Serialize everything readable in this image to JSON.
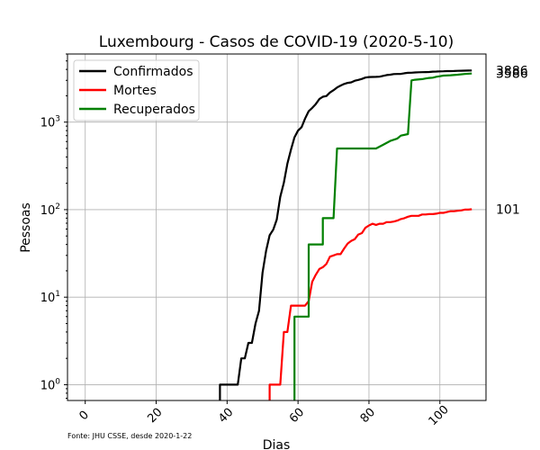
{
  "chart_data": {
    "type": "line",
    "title": "Luxembourg - Casos de COVID-19 (2020-5-10)",
    "xlabel": "Dias",
    "ylabel": "Pessoas",
    "source": "Fonte: JHU CSSE, desde 2020-1-22",
    "xlim": [
      -5,
      113
    ],
    "ylim": [
      0.66,
      6000
    ],
    "yscale": "log",
    "xticks": [
      0,
      20,
      40,
      60,
      80,
      100
    ],
    "yticks": [
      {
        "value": 1,
        "base": "10",
        "exp": "0"
      },
      {
        "value": 10,
        "base": "10",
        "exp": "1"
      },
      {
        "value": 100,
        "base": "10",
        "exp": "2"
      },
      {
        "value": 1000,
        "base": "10",
        "exp": "3"
      }
    ],
    "grid": true,
    "legend_position": "top-left",
    "series": [
      {
        "name": "Confirmados",
        "color": "#000000",
        "end_label": "3886",
        "points": [
          [
            38,
            0.5
          ],
          [
            38,
            1
          ],
          [
            43,
            1
          ],
          [
            44,
            2
          ],
          [
            45,
            2
          ],
          [
            46,
            3
          ],
          [
            47,
            3
          ],
          [
            48,
            5
          ],
          [
            49,
            7
          ],
          [
            50,
            19
          ],
          [
            51,
            34
          ],
          [
            52,
            51
          ],
          [
            53,
            59
          ],
          [
            54,
            77
          ],
          [
            55,
            140
          ],
          [
            56,
            203
          ],
          [
            57,
            335
          ],
          [
            58,
            484
          ],
          [
            59,
            670
          ],
          [
            60,
            798
          ],
          [
            61,
            875
          ],
          [
            62,
            1099
          ],
          [
            63,
            1333
          ],
          [
            64,
            1453
          ],
          [
            65,
            1605
          ],
          [
            66,
            1831
          ],
          [
            67,
            1950
          ],
          [
            68,
            1988
          ],
          [
            69,
            2178
          ],
          [
            70,
            2319
          ],
          [
            71,
            2487
          ],
          [
            72,
            2612
          ],
          [
            73,
            2729
          ],
          [
            74,
            2804
          ],
          [
            75,
            2843
          ],
          [
            76,
            2970
          ],
          [
            77,
            3034
          ],
          [
            78,
            3115
          ],
          [
            79,
            3223
          ],
          [
            80,
            3270
          ],
          [
            81,
            3281
          ],
          [
            82,
            3292
          ],
          [
            83,
            3307
          ],
          [
            84,
            3373
          ],
          [
            85,
            3444
          ],
          [
            86,
            3480
          ],
          [
            87,
            3537
          ],
          [
            88,
            3550
          ],
          [
            89,
            3558
          ],
          [
            90,
            3618
          ],
          [
            91,
            3654
          ],
          [
            92,
            3665
          ],
          [
            93,
            3695
          ],
          [
            94,
            3711
          ],
          [
            95,
            3723
          ],
          [
            96,
            3729
          ],
          [
            97,
            3741
          ],
          [
            98,
            3769
          ],
          [
            99,
            3784
          ],
          [
            100,
            3802
          ],
          [
            101,
            3812
          ],
          [
            102,
            3824
          ],
          [
            103,
            3828
          ],
          [
            104,
            3840
          ],
          [
            105,
            3851
          ],
          [
            106,
            3859
          ],
          [
            107,
            3871
          ],
          [
            108,
            3877
          ],
          [
            109,
            3886
          ]
        ]
      },
      {
        "name": "Mortes",
        "color": "#ff0000",
        "end_label": "101",
        "points": [
          [
            52,
            0.5
          ],
          [
            52,
            1
          ],
          [
            55,
            1
          ],
          [
            56,
            4
          ],
          [
            57,
            4
          ],
          [
            58,
            8
          ],
          [
            62,
            8
          ],
          [
            63,
            9
          ],
          [
            64,
            15
          ],
          [
            65,
            18
          ],
          [
            66,
            21
          ],
          [
            67,
            22
          ],
          [
            68,
            24
          ],
          [
            69,
            29
          ],
          [
            70,
            30
          ],
          [
            71,
            31
          ],
          [
            72,
            31
          ],
          [
            73,
            36
          ],
          [
            74,
            41
          ],
          [
            75,
            44
          ],
          [
            76,
            46
          ],
          [
            77,
            52
          ],
          [
            78,
            54
          ],
          [
            79,
            62
          ],
          [
            80,
            66
          ],
          [
            81,
            69
          ],
          [
            82,
            67
          ],
          [
            83,
            69
          ],
          [
            84,
            69
          ],
          [
            85,
            72
          ],
          [
            86,
            72
          ],
          [
            87,
            73
          ],
          [
            88,
            75
          ],
          [
            89,
            78
          ],
          [
            90,
            80
          ],
          [
            91,
            83
          ],
          [
            92,
            85
          ],
          [
            93,
            85
          ],
          [
            94,
            85
          ],
          [
            95,
            88
          ],
          [
            96,
            88
          ],
          [
            97,
            89
          ],
          [
            98,
            89
          ],
          [
            99,
            90
          ],
          [
            100,
            92
          ],
          [
            101,
            92
          ],
          [
            102,
            94
          ],
          [
            103,
            96
          ],
          [
            104,
            96
          ],
          [
            105,
            97
          ],
          [
            106,
            98
          ],
          [
            107,
            100
          ],
          [
            108,
            100
          ],
          [
            109,
            101
          ]
        ]
      },
      {
        "name": "Recuperados",
        "color": "#008000",
        "end_label": "3586",
        "points": [
          [
            59,
            0.5
          ],
          [
            59,
            6
          ],
          [
            63,
            6
          ],
          [
            63,
            40
          ],
          [
            67,
            40
          ],
          [
            67,
            80
          ],
          [
            70,
            80
          ],
          [
            71,
            500
          ],
          [
            82,
            500
          ],
          [
            84,
            550
          ],
          [
            86,
            610
          ],
          [
            88,
            650
          ],
          [
            89,
            700
          ],
          [
            91,
            730
          ],
          [
            92,
            3000
          ],
          [
            93,
            3050
          ],
          [
            95,
            3100
          ],
          [
            96,
            3150
          ],
          [
            97,
            3200
          ],
          [
            98,
            3220
          ],
          [
            99,
            3300
          ],
          [
            100,
            3340
          ],
          [
            101,
            3400
          ],
          [
            103,
            3430
          ],
          [
            105,
            3480
          ],
          [
            107,
            3550
          ],
          [
            109,
            3586
          ]
        ]
      }
    ]
  }
}
